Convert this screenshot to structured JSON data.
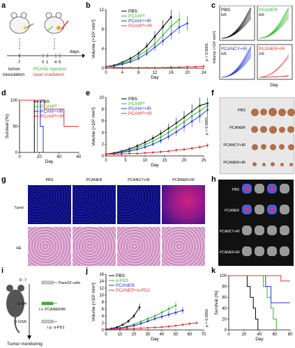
{
  "panel_letters": {
    "a": "a",
    "b": "b",
    "c": "c",
    "d": "d",
    "e": "e",
    "f": "f",
    "g": "g",
    "h": "h",
    "i": "i",
    "j": "j",
    "k": "k"
  },
  "panel_a": {
    "days_label": "days",
    "ticks": [
      "-7",
      "0",
      "1",
      "4",
      "5"
    ],
    "tumor_label_1": "tumor",
    "tumor_label_2": "inoculation",
    "injection_label": "PCANs injection",
    "laser_label": "laser irradiation",
    "colors": {
      "injection": "#2eb82e",
      "laser": "#e53030"
    }
  },
  "legend_groups": [
    "PBS",
    "PCANᴱᴿ",
    "PCANᶜᵞ+IR",
    "PCANᴱᴿ+IR"
  ],
  "series_colors": [
    "#000000",
    "#2eb82e",
    "#2233dd",
    "#e53030"
  ],
  "panel_b": {
    "chart_data": {
      "type": "line",
      "ylabel": "Volume (×10² mm³)",
      "xlabel": "Day",
      "ylim": [
        0,
        12
      ],
      "xlim": [
        0,
        24
      ],
      "yticks": [
        "0",
        "4",
        "8",
        "12"
      ],
      "xticks": [
        "0",
        "4",
        "8",
        "12",
        "16",
        "20",
        "24"
      ],
      "series": [
        {
          "name": "PBS",
          "x": [
            0,
            2,
            4,
            6,
            8,
            10,
            12,
            14,
            16
          ],
          "y": [
            0.3,
            0.6,
            1.2,
            2.0,
            3.0,
            4.5,
            6.5,
            8.5,
            10.5
          ]
        },
        {
          "name": "PCANER",
          "x": [
            0,
            2,
            4,
            6,
            8,
            10,
            12,
            14,
            16,
            18
          ],
          "y": [
            0.3,
            0.5,
            1.0,
            1.6,
            2.5,
            3.6,
            5.0,
            6.8,
            8.6,
            10.0
          ]
        },
        {
          "name": "PCANCY+IR",
          "x": [
            0,
            2,
            4,
            6,
            8,
            10,
            12,
            14,
            16,
            18,
            20
          ],
          "y": [
            0.3,
            0.5,
            0.8,
            1.3,
            2.0,
            3.0,
            4.3,
            5.6,
            7.0,
            8.4,
            9.2
          ]
        },
        {
          "name": "PCANER+IR",
          "x": [
            0,
            2,
            4,
            6,
            8,
            10,
            12,
            14,
            16,
            18,
            20,
            22,
            24
          ],
          "y": [
            0.3,
            0.2,
            0.1,
            0.1,
            0.1,
            0.1,
            0.1,
            0.1,
            0.2,
            0.2,
            0.3,
            0.3,
            0.4
          ]
        }
      ],
      "annotation": "p < 0.0001"
    }
  },
  "panel_c": {
    "ylabel": "Volume (×10³ mm³)",
    "xlabel": "Day",
    "subpanels": [
      {
        "name": "PBS",
        "ratio": "6/6"
      },
      {
        "name": "PCANER",
        "ratio": "6/6"
      },
      {
        "name": "PCANCY+IR",
        "ratio": "6/6"
      },
      {
        "name": "PCANER+IR",
        "ratio": "2/6"
      }
    ]
  },
  "panel_d": {
    "chart_data": {
      "type": "line",
      "ylabel": "Survival (%)",
      "xlabel": "Day",
      "ylim": [
        0,
        100
      ],
      "xlim": [
        0,
        60
      ],
      "yticks": [
        "0",
        "50",
        "100"
      ],
      "xticks": [
        "0",
        "20",
        "40",
        "60"
      ],
      "series": [
        {
          "name": "PBS",
          "steps": [
            [
              0,
              100
            ],
            [
              15,
              100
            ],
            [
              15,
              0
            ]
          ]
        },
        {
          "name": "PCANER",
          "steps": [
            [
              0,
              100
            ],
            [
              18,
              100
            ],
            [
              18,
              0
            ]
          ]
        },
        {
          "name": "PCANCY+IR",
          "steps": [
            [
              0,
              100
            ],
            [
              21,
              100
            ],
            [
              21,
              50
            ],
            [
              24,
              50
            ],
            [
              24,
              0
            ]
          ]
        },
        {
          "name": "PCANER+IR",
          "steps": [
            [
              0,
              100
            ],
            [
              25,
              100
            ],
            [
              25,
              83
            ],
            [
              45,
              83
            ],
            [
              45,
              50
            ],
            [
              60,
              50
            ]
          ]
        }
      ]
    }
  },
  "panel_e": {
    "chart_data": {
      "type": "line",
      "ylabel": "Volume (×10² mm³)",
      "xlabel": "Day",
      "ylim": [
        0,
        10
      ],
      "xlim": [
        0,
        25
      ],
      "yticks": [
        "0",
        "2",
        "4",
        "6",
        "8",
        "10"
      ],
      "xticks": [
        "0",
        "5",
        "10",
        "15",
        "20",
        "25"
      ],
      "series": [
        {
          "name": "PBS",
          "x": [
            0,
            2,
            4,
            6,
            8,
            10,
            12,
            14,
            16,
            18,
            20,
            22,
            24,
            26
          ],
          "y": [
            0.3,
            0.5,
            0.8,
            1.2,
            1.7,
            2.3,
            3.0,
            3.8,
            4.7,
            5.6,
            6.6,
            7.6,
            8.6,
            9.0
          ]
        },
        {
          "name": "PCANER",
          "x": [
            0,
            2,
            4,
            6,
            8,
            10,
            12,
            14,
            16,
            18,
            20,
            22,
            24,
            26
          ],
          "y": [
            0.3,
            0.4,
            0.7,
            1.0,
            1.4,
            1.9,
            2.5,
            3.2,
            4.0,
            4.9,
            5.8,
            6.8,
            7.7,
            8.6
          ]
        },
        {
          "name": "PCANCY+IR",
          "x": [
            0,
            2,
            4,
            6,
            8,
            10,
            12,
            14,
            16,
            18,
            20,
            22,
            24,
            26
          ],
          "y": [
            0.3,
            0.4,
            0.6,
            0.8,
            1.1,
            1.5,
            2.0,
            2.6,
            3.3,
            4.1,
            5.0,
            5.9,
            6.8,
            7.9
          ]
        },
        {
          "name": "PCANER+IR",
          "x": [
            0,
            2,
            4,
            6,
            8,
            10,
            12,
            14,
            16,
            18,
            20,
            22,
            24,
            26
          ],
          "y": [
            0.3,
            0.3,
            0.3,
            0.4,
            0.4,
            0.5,
            0.6,
            0.7,
            0.8,
            1.0,
            1.1,
            1.3,
            1.5,
            1.8
          ]
        }
      ],
      "annotation": "p < 0.0001"
    }
  },
  "panel_f": {
    "labels": [
      "PBS",
      "PCANER",
      "PCANCY+IR",
      "PCANER+IR"
    ]
  },
  "panel_g": {
    "columns": [
      "PBS",
      "PCANER",
      "PCANCY+IR",
      "PCANER+IR"
    ],
    "rows": [
      "Tunel",
      "HE"
    ]
  },
  "panel_h": {
    "labels": [
      "PBS",
      "PCANER",
      "PCANCY+IR",
      "PCANER+IR"
    ]
  },
  "panel_i": {
    "steps": [
      {
        "day": "D -7",
        "text": "Panc02 cells"
      },
      {
        "day": "D 0/4",
        "text": "i.v. PCANER/IR"
      },
      {
        "day": "D 0/3/6",
        "text": "i.p. α-PD1"
      }
    ],
    "footer": "Tumor monitoring"
  },
  "panel_j": {
    "legend": [
      "PBS",
      "α-PD1",
      "PCANER",
      "PCANER+α-PD1"
    ],
    "colors": [
      "#000000",
      "#2eb82e",
      "#2233dd",
      "#e53030"
    ],
    "chart_data": {
      "type": "line",
      "ylabel": "Volume (×10² mm³)",
      "xlabel": "Day",
      "ylim": [
        0,
        16
      ],
      "xlim": [
        0,
        70
      ],
      "yticks": [
        "0",
        "2",
        "4",
        "6",
        "8",
        "10",
        "12",
        "14",
        "16"
      ],
      "xticks": [
        "0",
        "10",
        "20",
        "30",
        "40",
        "50",
        "60",
        "70"
      ],
      "series": [
        {
          "name": "PBS",
          "x": [
            0,
            4,
            8,
            12,
            16,
            20,
            24
          ],
          "y": [
            0.2,
            0.4,
            0.8,
            1.5,
            2.5,
            4.0,
            6.5
          ]
        },
        {
          "name": "α-PD1",
          "x": [
            0,
            5,
            10,
            15,
            20,
            25,
            30,
            35,
            40,
            45,
            50
          ],
          "y": [
            0.2,
            0.3,
            0.6,
            1.0,
            1.6,
            2.4,
            3.2,
            4.0,
            5.0,
            6.0,
            7.0
          ]
        },
        {
          "name": "PCANER",
          "x": [
            0,
            5,
            10,
            15,
            20,
            25,
            30,
            35,
            40,
            45,
            50,
            55
          ],
          "y": [
            0.2,
            0.3,
            0.5,
            0.8,
            1.2,
            1.8,
            2.5,
            3.2,
            3.8,
            4.4,
            5.0,
            5.6
          ]
        },
        {
          "name": "PCANER+α-PD1",
          "x": [
            0,
            5,
            10,
            15,
            20,
            25,
            30,
            35,
            40,
            45,
            50,
            55,
            60,
            65
          ],
          "y": [
            0.2,
            0.2,
            0.3,
            0.3,
            0.4,
            0.5,
            0.6,
            0.7,
            0.8,
            1.0,
            1.2,
            1.5,
            1.8,
            2.0
          ]
        }
      ],
      "annotation": "p = 0.0002"
    }
  },
  "panel_k": {
    "chart_data": {
      "type": "line",
      "ylabel": "Survival (%)",
      "xlabel": "Day",
      "ylim": [
        0,
        100
      ],
      "xlim": [
        0,
        80
      ],
      "yticks": [
        "0",
        "20",
        "40",
        "60",
        "80",
        "100"
      ],
      "xticks": [
        "0",
        "20",
        "40",
        "60",
        "80"
      ],
      "series": [
        {
          "name": "PBS",
          "steps": [
            [
              0,
              100
            ],
            [
              24,
              100
            ],
            [
              24,
              80
            ],
            [
              28,
              80
            ],
            [
              28,
              60
            ],
            [
              32,
              60
            ],
            [
              32,
              40
            ],
            [
              35,
              40
            ],
            [
              35,
              20
            ],
            [
              38,
              20
            ],
            [
              38,
              0
            ]
          ]
        },
        {
          "name": "α-PD1",
          "steps": [
            [
              0,
              100
            ],
            [
              45,
              100
            ],
            [
              45,
              80
            ],
            [
              50,
              80
            ],
            [
              50,
              60
            ],
            [
              55,
              60
            ],
            [
              55,
              40
            ],
            [
              58,
              40
            ],
            [
              58,
              20
            ],
            [
              62,
              20
            ],
            [
              62,
              0
            ]
          ]
        },
        {
          "name": "PCANER",
          "steps": [
            [
              0,
              100
            ],
            [
              48,
              100
            ],
            [
              48,
              80
            ],
            [
              55,
              80
            ],
            [
              55,
              50
            ],
            [
              80,
              50
            ]
          ]
        },
        {
          "name": "PCANER+α-PD1",
          "steps": [
            [
              0,
              100
            ],
            [
              68,
              100
            ],
            [
              68,
              90
            ],
            [
              80,
              90
            ]
          ]
        }
      ]
    }
  }
}
